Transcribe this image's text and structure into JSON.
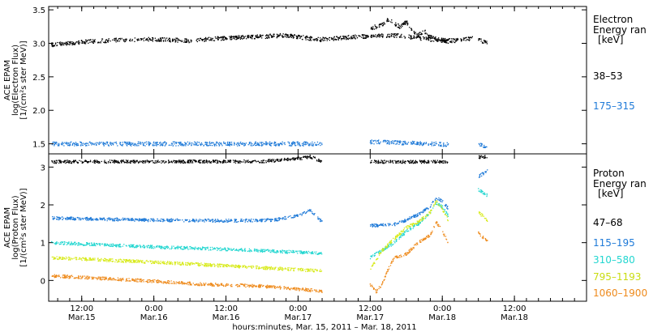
{
  "chart_data": [
    {
      "type": "scatter",
      "panel": "electron",
      "ylabel_lines": [
        "ACE EPAM",
        "log(Electron Flux)",
        "[1/(cm²s ster MeV)]"
      ],
      "ylim": [
        1.35,
        3.55
      ],
      "yticks": [
        1.5,
        2.0,
        2.5,
        3.0,
        3.5
      ],
      "ytick_labels": [
        "1.5",
        "2.0",
        "2.5",
        "3.0",
        "3.5"
      ],
      "legend_title": [
        "Electron",
        "Energy ran",
        "[keV]"
      ],
      "legend_rows": [
        {
          "label": "38–53",
          "color": "#000000"
        },
        {
          "label": "175–315",
          "color": "#1f7ad8"
        }
      ],
      "series": [
        {
          "name": "38–53",
          "color": "#000000",
          "segments": [
            {
              "x0": -5,
              "x1": 40,
              "points": [
                [
                  -5,
                  2.98
                ],
                [
                  0,
                  3.02
                ],
                [
                  6,
                  3.05
                ],
                [
                  12,
                  3.06
                ],
                [
                  18,
                  3.04
                ],
                [
                  24,
                  3.08
                ],
                [
                  30,
                  3.1
                ],
                [
                  34,
                  3.12
                ],
                [
                  40,
                  3.05
                ]
              ]
            },
            {
              "x0": 40,
              "x1": 65,
              "points": [
                [
                  40,
                  3.06
                ],
                [
                  46,
                  3.1
                ],
                [
                  52,
                  3.12
                ],
                [
                  58,
                  3.06
                ],
                [
                  62,
                  3.04
                ],
                [
                  65,
                  3.07
                ]
              ]
            },
            {
              "x0": 48,
              "x1": 58,
              "points": [
                [
                  48,
                  3.22
                ],
                [
                  50,
                  3.28
                ],
                [
                  51,
                  3.36
                ],
                [
                  52,
                  3.3
                ],
                [
                  53,
                  3.24
                ],
                [
                  54,
                  3.32
                ],
                [
                  55,
                  3.2
                ],
                [
                  56,
                  3.12
                ],
                [
                  57,
                  3.18
                ],
                [
                  58,
                  3.1
                ]
              ]
            },
            {
              "x0": 58,
              "x1": 61,
              "points": [
                [
                  58,
                  3.1
                ],
                [
                  59,
                  3.06
                ],
                [
                  60,
                  3.04
                ],
                [
                  61,
                  3.02
                ]
              ]
            },
            {
              "x0": 66,
              "x1": 67.5,
              "points": [
                [
                  66,
                  3.05
                ],
                [
                  67.5,
                  3.0
                ]
              ]
            }
          ]
        },
        {
          "name": "175–315",
          "color": "#1f7ad8",
          "segments": [
            {
              "x0": -5,
              "x1": 40,
              "points": [
                [
                  -5,
                  1.5
                ],
                [
                  40,
                  1.5
                ]
              ]
            },
            {
              "x0": 48,
              "x1": 61,
              "points": [
                [
                  48,
                  1.53
                ],
                [
                  61,
                  1.49
                ]
              ]
            },
            {
              "x0": 66,
              "x1": 67.5,
              "points": [
                [
                  66,
                  1.48
                ],
                [
                  67.5,
                  1.47
                ]
              ]
            }
          ]
        }
      ]
    },
    {
      "type": "scatter",
      "panel": "proton",
      "ylabel_lines": [
        "ACE EPAM",
        "log(Proton Flux)",
        "[1/(cm²s ster MeV)]"
      ],
      "ylim": [
        -0.55,
        3.35
      ],
      "yticks": [
        0,
        1,
        2,
        3
      ],
      "ytick_labels": [
        "0",
        "1",
        "2",
        "3"
      ],
      "legend_title": [
        "Proton",
        "Energy ran",
        "[keV]"
      ],
      "legend_rows": [
        {
          "label": "47–68",
          "color": "#000000"
        },
        {
          "label": "115–195",
          "color": "#1f7ad8"
        },
        {
          "label": "310–580",
          "color": "#22d6d0"
        },
        {
          "label": "795–1193",
          "color": "#d7ea1a"
        },
        {
          "label": "1060–1900",
          "color": "#ee8a1c"
        }
      ],
      "series": [
        {
          "name": "47–68",
          "color": "#000000",
          "segments": [
            {
              "x0": -5,
              "x1": 40,
              "points": [
                [
                  -5,
                  3.14
                ],
                [
                  30,
                  3.15
                ],
                [
                  36,
                  3.22
                ],
                [
                  38,
                  3.28
                ],
                [
                  40,
                  3.14
                ]
              ]
            },
            {
              "x0": 48,
              "x1": 61,
              "points": [
                [
                  48,
                  3.14
                ],
                [
                  61,
                  3.14
                ]
              ]
            },
            {
              "x0": 66,
              "x1": 67.5,
              "points": [
                [
                  66,
                  3.26
                ],
                [
                  67.5,
                  3.28
                ]
              ]
            }
          ]
        },
        {
          "name": "115–195",
          "color": "#1f7ad8",
          "segments": [
            {
              "x0": -5,
              "x1": 40,
              "points": [
                [
                  -5,
                  1.65
                ],
                [
                  10,
                  1.6
                ],
                [
                  25,
                  1.58
                ],
                [
                  32,
                  1.6
                ],
                [
                  36,
                  1.72
                ],
                [
                  38,
                  1.85
                ],
                [
                  40,
                  1.55
                ]
              ]
            },
            {
              "x0": 48,
              "x1": 61,
              "points": [
                [
                  48,
                  1.45
                ],
                [
                  52,
                  1.48
                ],
                [
                  54,
                  1.6
                ],
                [
                  56,
                  1.75
                ],
                [
                  58,
                  1.95
                ],
                [
                  59,
                  2.2
                ],
                [
                  60,
                  2.1
                ],
                [
                  61,
                  1.9
                ]
              ]
            },
            {
              "x0": 66,
              "x1": 67.5,
              "points": [
                [
                  66,
                  2.75
                ],
                [
                  67.5,
                  2.9
                ]
              ]
            }
          ]
        },
        {
          "name": "310–580",
          "color": "#22d6d0",
          "segments": [
            {
              "x0": -5,
              "x1": 40,
              "points": [
                [
                  -5,
                  1.0
                ],
                [
                  10,
                  0.9
                ],
                [
                  25,
                  0.82
                ],
                [
                  40,
                  0.72
                ]
              ]
            },
            {
              "x0": 48,
              "x1": 61,
              "points": [
                [
                  48,
                  0.6
                ],
                [
                  50,
                  0.8
                ],
                [
                  52,
                  1.0
                ],
                [
                  54,
                  1.3
                ],
                [
                  56,
                  1.5
                ],
                [
                  58,
                  1.8
                ],
                [
                  59,
                  2.05
                ],
                [
                  60,
                  1.95
                ],
                [
                  61,
                  1.7
                ]
              ]
            },
            {
              "x0": 66,
              "x1": 67.5,
              "points": [
                [
                  66,
                  2.4
                ],
                [
                  67.5,
                  2.25
                ]
              ]
            }
          ]
        },
        {
          "name": "795–1193",
          "color": "#d7ea1a",
          "segments": [
            {
              "x0": -5,
              "x1": 40,
              "points": [
                [
                  -5,
                  0.6
                ],
                [
                  10,
                  0.5
                ],
                [
                  25,
                  0.38
                ],
                [
                  40,
                  0.25
                ]
              ]
            },
            {
              "x0": 48,
              "x1": 61,
              "points": [
                [
                  48,
                  0.3
                ],
                [
                  50,
                  0.8
                ],
                [
                  52,
                  1.1
                ],
                [
                  54,
                  1.4
                ],
                [
                  56,
                  1.55
                ],
                [
                  58,
                  1.8
                ],
                [
                  59,
                  2.1
                ],
                [
                  60,
                  1.9
                ],
                [
                  61,
                  1.6
                ]
              ]
            },
            {
              "x0": 66,
              "x1": 67.5,
              "points": [
                [
                  66,
                  1.8
                ],
                [
                  67.5,
                  1.6
                ]
              ]
            }
          ]
        },
        {
          "name": "1060–1900",
          "color": "#ee8a1c",
          "segments": [
            {
              "x0": -5,
              "x1": 40,
              "points": [
                [
                  -5,
                  0.12
                ],
                [
                  10,
                  0.0
                ],
                [
                  20,
                  -0.1
                ],
                [
                  30,
                  -0.15
                ],
                [
                  40,
                  -0.28
                ]
              ]
            },
            {
              "x0": 48,
              "x1": 61,
              "points": [
                [
                  48,
                  -0.1
                ],
                [
                  49,
                  -0.3
                ],
                [
                  50,
                  -0.1
                ],
                [
                  51,
                  0.3
                ],
                [
                  52,
                  0.6
                ],
                [
                  54,
                  0.7
                ],
                [
                  56,
                  1.0
                ],
                [
                  58,
                  1.2
                ],
                [
                  59,
                  1.55
                ],
                [
                  60,
                  1.3
                ],
                [
                  61,
                  1.0
                ]
              ]
            },
            {
              "x0": 66,
              "x1": 67.5,
              "points": [
                [
                  66,
                  1.25
                ],
                [
                  67.5,
                  1.05
                ]
              ]
            }
          ]
        }
      ]
    }
  ],
  "x_axis": {
    "xlim": [
      -5.5,
      84
    ],
    "ticks": [
      {
        "x": 0,
        "top": "12:00",
        "bottom": "Mar.15"
      },
      {
        "x": 12,
        "top": "0:00",
        "bottom": "Mar.16"
      },
      {
        "x": 24,
        "top": "12:00",
        "bottom": "Mar.16"
      },
      {
        "x": 36,
        "top": "0:00",
        "bottom": "Mar.17"
      },
      {
        "x": 48,
        "top": "12:00",
        "bottom": "Mar.17"
      },
      {
        "x": 60,
        "top": "0:00",
        "bottom": "Mar.18"
      },
      {
        "x": 72,
        "top": "12:00",
        "bottom": "Mar.18"
      }
    ],
    "title": "hours:minutes, Mar. 15, 2011 – Mar. 18, 2011"
  }
}
